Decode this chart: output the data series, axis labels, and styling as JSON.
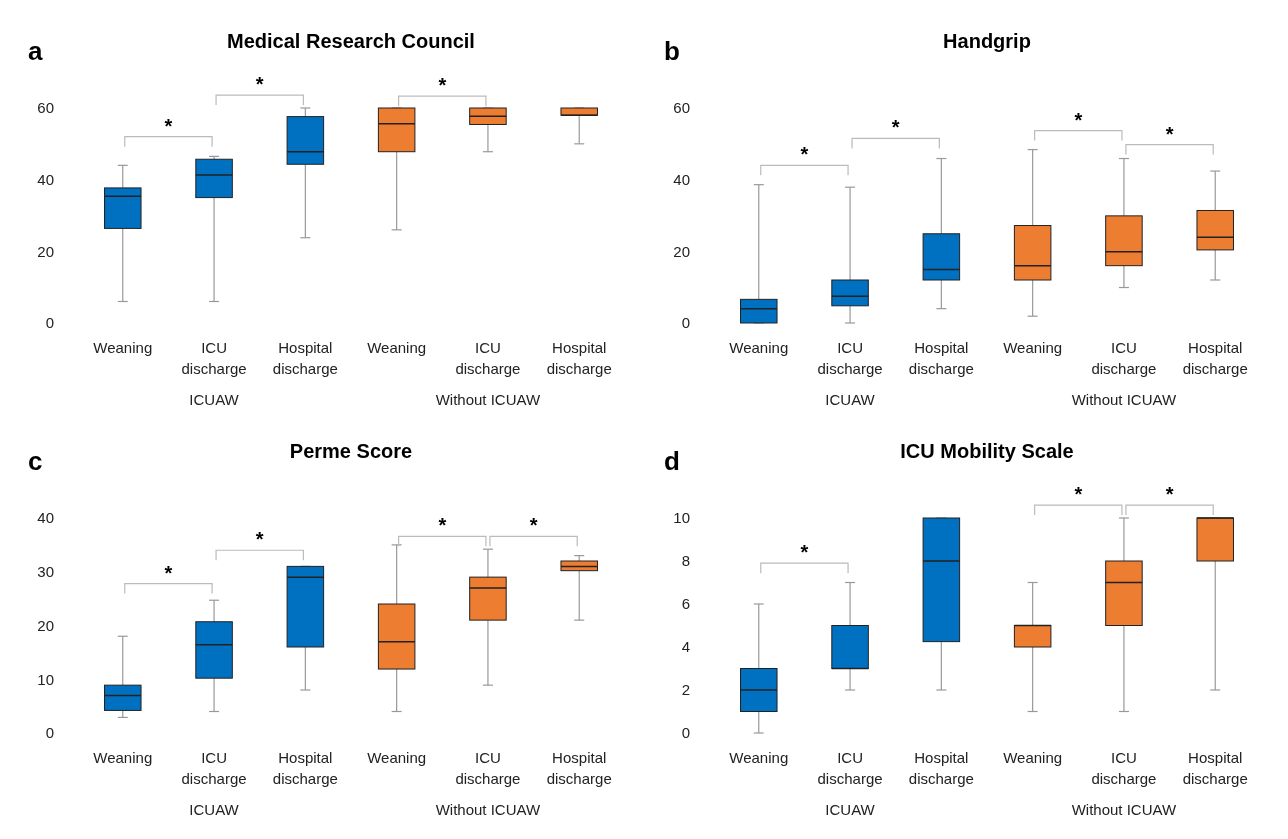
{
  "chart_data": [
    {
      "type": "box",
      "title": "Medical Research Council",
      "categories": [
        "Weaning",
        "ICU discharge",
        "Hospital discharge",
        "Weaning",
        "ICU discharge",
        "Hospital discharge"
      ],
      "colors": [
        "#0070c0",
        "#0070c0",
        "#0070c0",
        "#ed7d31",
        "#ed7d31",
        "#ed7d31"
      ],
      "ylim": [
        0,
        60
      ],
      "yticks": [
        0,
        20,
        40,
        60
      ],
      "annotations": [
        "a",
        "ICUAW",
        "Without ICUAW",
        "*",
        "*",
        "*"
      ],
      "boxes": [
        {
          "low": 6,
          "q1": 26.4,
          "median": 35.4,
          "q3": 37.7,
          "high": 44
        },
        {
          "low": 6,
          "q1": 35,
          "median": 41.3,
          "q3": 45.7,
          "high": 46.5
        },
        {
          "low": 23.8,
          "q1": 44.3,
          "median": 47.8,
          "q3": 57.6,
          "high": 60
        },
        {
          "low": 26,
          "q1": 47.8,
          "median": 55.6,
          "q3": 60,
          "high": 60
        },
        {
          "low": 47.8,
          "q1": 55.4,
          "median": 57.7,
          "q3": 60,
          "high": 60
        },
        {
          "low": 50,
          "q1": 58,
          "median": 58,
          "q3": 60,
          "high": 60
        }
      ]
    },
    {
      "type": "box",
      "title": "Handgrip",
      "categories": [
        "Weaning",
        "ICU discharge",
        "Hospital discharge",
        "Weaning",
        "ICU discharge",
        "Hospital discharge"
      ],
      "colors": [
        "#0070c0",
        "#0070c0",
        "#0070c0",
        "#ed7d31",
        "#ed7d31",
        "#ed7d31"
      ],
      "ylim": [
        0,
        60
      ],
      "yticks": [
        0,
        20,
        40,
        60
      ],
      "annotations": [
        "b",
        "ICUAW",
        "Without ICUAW",
        "*",
        "*",
        "*",
        "*"
      ],
      "boxes": [
        {
          "low": 0,
          "q1": 0,
          "median": 4,
          "q3": 6.6,
          "high": 38.6
        },
        {
          "low": 0,
          "q1": 4.8,
          "median": 7.5,
          "q3": 12,
          "high": 37.9
        },
        {
          "low": 4,
          "q1": 12,
          "median": 14.9,
          "q3": 24.9,
          "high": 45.9
        },
        {
          "low": 1.9,
          "q1": 12,
          "median": 16,
          "q3": 27.2,
          "high": 48.4
        },
        {
          "low": 9.9,
          "q1": 16,
          "median": 19.9,
          "q3": 29.9,
          "high": 45.9
        },
        {
          "low": 12,
          "q1": 20.4,
          "median": 23.9,
          "q3": 31.4,
          "high": 42.4
        }
      ]
    },
    {
      "type": "box",
      "title": "Perme Score",
      "categories": [
        "Weaning",
        "ICU discharge",
        "Hospital discharge",
        "Weaning",
        "ICU discharge",
        "Hospital discharge"
      ],
      "colors": [
        "#0070c0",
        "#0070c0",
        "#0070c0",
        "#ed7d31",
        "#ed7d31",
        "#ed7d31"
      ],
      "ylim": [
        0,
        40
      ],
      "yticks": [
        0,
        10,
        20,
        30,
        40
      ],
      "annotations": [
        "c",
        "ICUAW",
        "Without ICUAW",
        "*",
        "*",
        "*",
        "*"
      ],
      "boxes": [
        {
          "low": 2.9,
          "q1": 4.2,
          "median": 7,
          "q3": 8.9,
          "high": 18
        },
        {
          "low": 4,
          "q1": 10.2,
          "median": 16.4,
          "q3": 20.7,
          "high": 24.7
        },
        {
          "low": 8,
          "q1": 16,
          "median": 29,
          "q3": 31,
          "high": 31
        },
        {
          "low": 4,
          "q1": 11.9,
          "median": 17,
          "q3": 24,
          "high": 35
        },
        {
          "low": 8.9,
          "q1": 21,
          "median": 27,
          "q3": 29,
          "high": 34.2
        },
        {
          "low": 21,
          "q1": 30.2,
          "median": 31,
          "q3": 32,
          "high": 33
        }
      ]
    },
    {
      "type": "box",
      "title": "ICU Mobility Scale",
      "categories": [
        "Weaning",
        "ICU discharge",
        "Hospital discharge",
        "Weaning",
        "ICU discharge",
        "Hospital discharge"
      ],
      "colors": [
        "#0070c0",
        "#0070c0",
        "#0070c0",
        "#ed7d31",
        "#ed7d31",
        "#ed7d31"
      ],
      "ylim": [
        0,
        10
      ],
      "yticks": [
        0,
        2,
        4,
        6,
        8,
        10
      ],
      "annotations": [
        "d",
        "ICUAW",
        "Without ICUAW",
        "*",
        "*",
        "*"
      ],
      "boxes": [
        {
          "low": 0,
          "q1": 1,
          "median": 2,
          "q3": 3,
          "high": 6
        },
        {
          "low": 2,
          "q1": 3,
          "median": 3,
          "q3": 5,
          "high": 7
        },
        {
          "low": 2,
          "q1": 4.25,
          "median": 8,
          "q3": 10,
          "high": 10
        },
        {
          "low": 1,
          "q1": 4,
          "median": 5,
          "q3": 5,
          "high": 7
        },
        {
          "low": 1,
          "q1": 5,
          "median": 7,
          "q3": 8,
          "high": 10
        },
        {
          "low": 2,
          "q1": 8,
          "median": 10,
          "q3": 10,
          "high": 10
        }
      ]
    }
  ]
}
